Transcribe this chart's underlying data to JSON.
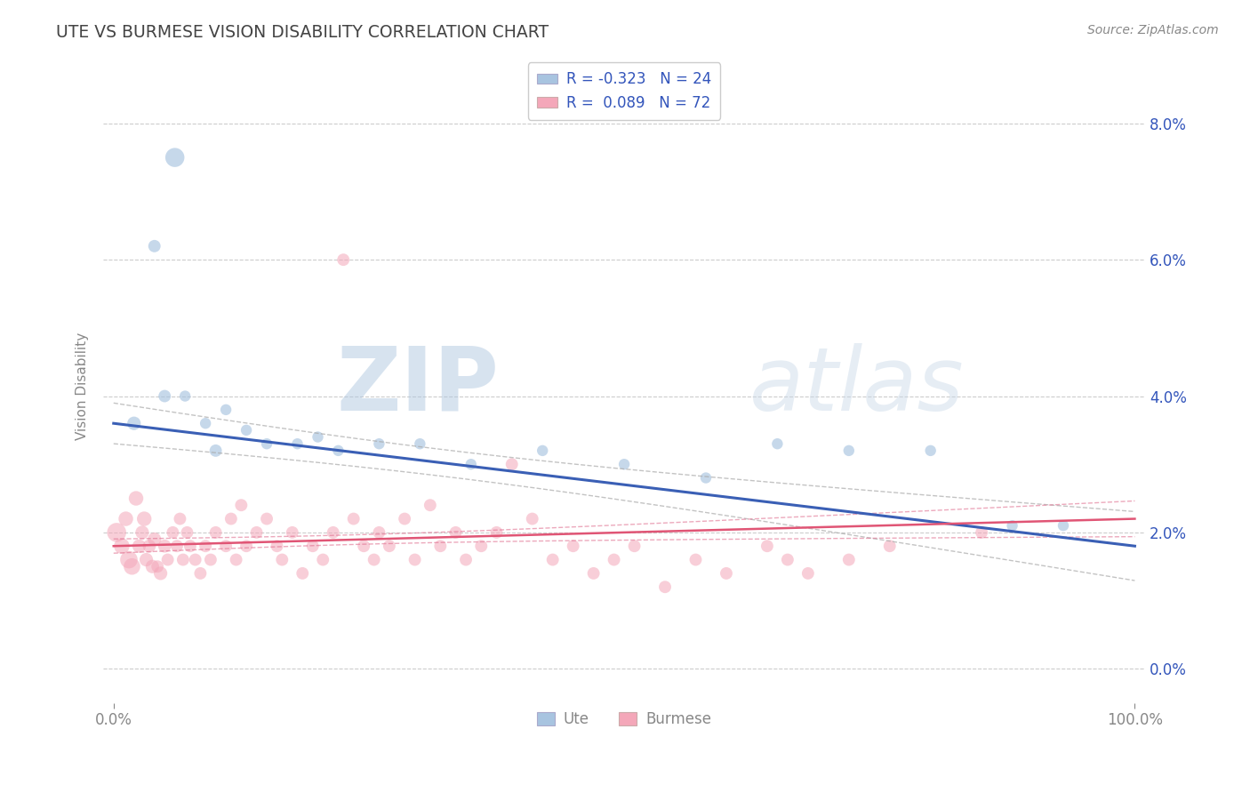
{
  "title": "UTE VS BURMESE VISION DISABILITY CORRELATION CHART",
  "source": "Source: ZipAtlas.com",
  "ylabel": "Vision Disability",
  "xlabel": "",
  "xlim": [
    -0.01,
    1.01
  ],
  "ylim": [
    -0.005,
    0.088
  ],
  "yticks": [
    0.0,
    0.02,
    0.04,
    0.06,
    0.08
  ],
  "ytick_labels": [
    "0.0%",
    "2.0%",
    "4.0%",
    "6.0%",
    "8.0%"
  ],
  "xticks": [
    0.0,
    1.0
  ],
  "xtick_labels": [
    "0.0%",
    "100.0%"
  ],
  "ute_color": "#a8c4e0",
  "burmese_color": "#f4a7b9",
  "ute_line_color": "#3a5fb5",
  "burmese_line_color": "#e05575",
  "ute_ci_color": "#aaaaaa",
  "burmese_ci_color": "#e07090",
  "legend_ute_label": "R = -0.323   N = 24",
  "legend_burmese_label": "R =  0.089   N = 72",
  "watermark_zip": "ZIP",
  "watermark_atlas": "atlas",
  "ute_x": [
    0.02,
    0.05,
    0.04,
    0.06,
    0.07,
    0.09,
    0.11,
    0.13,
    0.1,
    0.15,
    0.18,
    0.2,
    0.22,
    0.26,
    0.3,
    0.35,
    0.42,
    0.5,
    0.58,
    0.65,
    0.72,
    0.8,
    0.88,
    0.93
  ],
  "ute_y": [
    0.036,
    0.04,
    0.062,
    0.075,
    0.04,
    0.036,
    0.038,
    0.035,
    0.032,
    0.033,
    0.033,
    0.034,
    0.032,
    0.033,
    0.033,
    0.03,
    0.032,
    0.03,
    0.028,
    0.033,
    0.032,
    0.032,
    0.021,
    0.021
  ],
  "ute_size": [
    120,
    100,
    100,
    240,
    80,
    80,
    80,
    80,
    100,
    80,
    80,
    80,
    80,
    80,
    80,
    80,
    80,
    80,
    80,
    80,
    80,
    80,
    80,
    80
  ],
  "burmese_x": [
    0.003,
    0.008,
    0.012,
    0.015,
    0.018,
    0.022,
    0.025,
    0.028,
    0.03,
    0.032,
    0.035,
    0.038,
    0.04,
    0.043,
    0.046,
    0.05,
    0.053,
    0.058,
    0.062,
    0.065,
    0.068,
    0.072,
    0.075,
    0.08,
    0.085,
    0.09,
    0.095,
    0.1,
    0.11,
    0.115,
    0.12,
    0.125,
    0.13,
    0.14,
    0.15,
    0.16,
    0.165,
    0.175,
    0.185,
    0.195,
    0.205,
    0.215,
    0.225,
    0.235,
    0.245,
    0.255,
    0.26,
    0.27,
    0.285,
    0.295,
    0.31,
    0.32,
    0.335,
    0.345,
    0.36,
    0.375,
    0.39,
    0.41,
    0.43,
    0.45,
    0.47,
    0.49,
    0.51,
    0.54,
    0.57,
    0.6,
    0.64,
    0.66,
    0.68,
    0.72,
    0.76,
    0.85
  ],
  "burmese_y": [
    0.02,
    0.018,
    0.022,
    0.016,
    0.015,
    0.025,
    0.018,
    0.02,
    0.022,
    0.016,
    0.018,
    0.015,
    0.019,
    0.015,
    0.014,
    0.018,
    0.016,
    0.02,
    0.018,
    0.022,
    0.016,
    0.02,
    0.018,
    0.016,
    0.014,
    0.018,
    0.016,
    0.02,
    0.018,
    0.022,
    0.016,
    0.024,
    0.018,
    0.02,
    0.022,
    0.018,
    0.016,
    0.02,
    0.014,
    0.018,
    0.016,
    0.02,
    0.06,
    0.022,
    0.018,
    0.016,
    0.02,
    0.018,
    0.022,
    0.016,
    0.024,
    0.018,
    0.02,
    0.016,
    0.018,
    0.02,
    0.03,
    0.022,
    0.016,
    0.018,
    0.014,
    0.016,
    0.018,
    0.012,
    0.016,
    0.014,
    0.018,
    0.016,
    0.014,
    0.016,
    0.018,
    0.02
  ],
  "burmese_size": [
    240,
    160,
    140,
    200,
    180,
    140,
    120,
    120,
    140,
    120,
    112,
    120,
    120,
    100,
    120,
    112,
    100,
    100,
    100,
    100,
    100,
    100,
    100,
    100,
    100,
    100,
    100,
    100,
    100,
    100,
    100,
    100,
    100,
    100,
    100,
    100,
    100,
    100,
    100,
    100,
    100,
    100,
    100,
    100,
    100,
    100,
    100,
    100,
    100,
    100,
    100,
    100,
    100,
    100,
    100,
    100,
    100,
    100,
    100,
    100,
    100,
    100,
    100,
    100,
    100,
    100,
    100,
    100,
    100,
    100,
    100,
    100
  ],
  "bg_color": "#ffffff",
  "grid_color": "#cccccc",
  "title_color": "#444444",
  "axis_color": "#888888",
  "legend_text_color": "#3355bb",
  "ute_line_intercept": 0.036,
  "ute_line_slope": -0.018,
  "burmese_line_intercept": 0.018,
  "burmese_line_slope": 0.004
}
